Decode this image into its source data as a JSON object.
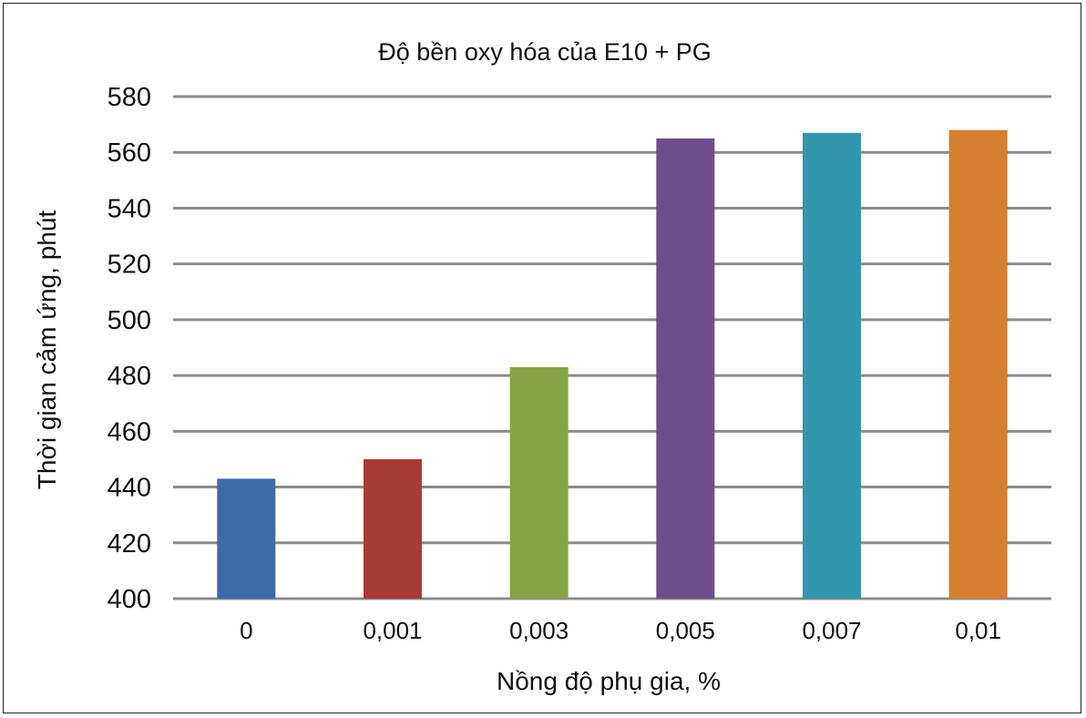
{
  "chart_data": {
    "type": "bar",
    "title": "Độ bền oxy hóa của E10 + PG",
    "xlabel": "Nồng độ phụ gia, %",
    "ylabel": "Thời gian cảm ứng, phút",
    "categories": [
      "0",
      "0,001",
      "0,003",
      "0,005",
      "0,007",
      "0,01"
    ],
    "values": [
      443,
      450,
      483,
      565,
      567,
      568
    ],
    "colors": [
      "#3c6ca8",
      "#a83a38",
      "#86a443",
      "#6d4e8c",
      "#3097ae",
      "#d77e2e"
    ],
    "ylim": [
      400,
      580
    ],
    "yticks": [
      "400",
      "420",
      "440",
      "460",
      "480",
      "500",
      "520",
      "540",
      "560",
      "580"
    ],
    "ytick_values": [
      400,
      420,
      440,
      460,
      480,
      500,
      520,
      540,
      560,
      580
    ],
    "grid": true,
    "legend": "none"
  }
}
